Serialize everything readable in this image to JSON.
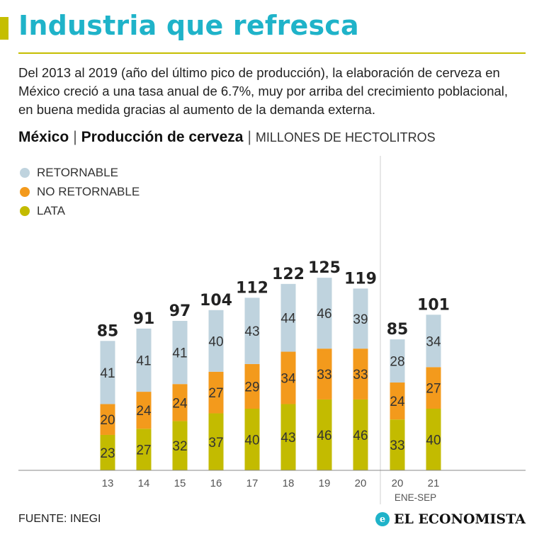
{
  "header": {
    "title": "Industria que refresca",
    "intro": "Del 2013 al 2019 (año del último pico de producción), la elaboración de cerveza en México creció a una tasa anual de 6.7%, muy por arriba del crecimiento poblacional, en buena medida gracias al aumento de la demanda externa."
  },
  "subtitle": {
    "country": "México",
    "separator": "|",
    "topic": "Producción de cerveza",
    "unit": "MILLONES DE HECTOLITROS"
  },
  "legend": [
    {
      "label": "RETORNABLE",
      "color": "#bfd3de"
    },
    {
      "label": "NO RETORNABLE",
      "color": "#f39a1c"
    },
    {
      "label": "LATA",
      "color": "#c3bb00"
    }
  ],
  "chart_data": {
    "type": "bar",
    "stacked": true,
    "title": "Producción de cerveza",
    "ylabel": "MILLONES DE HECTOLITROS",
    "categories": [
      "13",
      "14",
      "15",
      "16",
      "17",
      "18",
      "19",
      "20",
      "20",
      "21"
    ],
    "period_note": "ENE-SEP",
    "series": [
      {
        "name": "LATA",
        "color": "#c3bb00",
        "values": [
          23,
          27,
          32,
          37,
          40,
          43,
          46,
          46,
          33,
          40
        ]
      },
      {
        "name": "NO RETORNABLE",
        "color": "#f39a1c",
        "values": [
          20,
          24,
          24,
          27,
          29,
          34,
          33,
          33,
          24,
          27
        ]
      },
      {
        "name": "RETORNABLE",
        "color": "#bfd3de",
        "values": [
          41,
          41,
          41,
          40,
          43,
          44,
          46,
          39,
          28,
          34
        ]
      }
    ],
    "totals": [
      "85",
      "91",
      "97",
      "104",
      "112",
      "122",
      "125",
      "119",
      "85",
      "101"
    ],
    "ylim": [
      0,
      130
    ]
  },
  "footer": {
    "source": "FUENTE: INEGI",
    "brand": "EL ECONOMISTA",
    "brand_icon": "e"
  }
}
